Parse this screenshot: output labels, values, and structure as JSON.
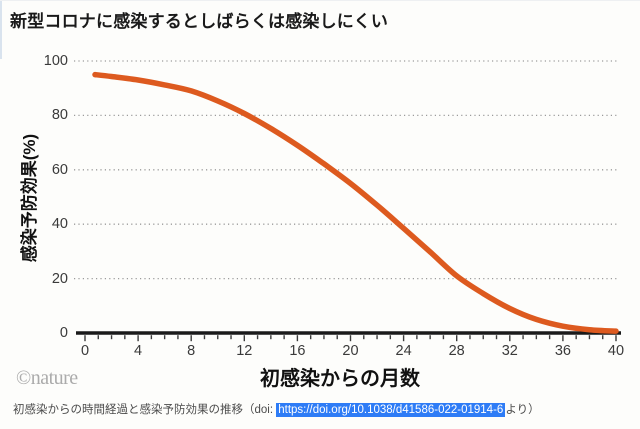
{
  "title": "新型コロナに感染するとしばらくは感染しにくい",
  "chart_data": {
    "type": "line",
    "title": "新型コロナに感染するとしばらくは感染しにくい",
    "xlabel": "初感染からの月数",
    "ylabel": "感染予防効果(%)",
    "xlim": [
      0,
      40
    ],
    "ylim": [
      0,
      100
    ],
    "x_ticks": [
      0,
      4,
      8,
      12,
      16,
      20,
      24,
      28,
      32,
      36,
      40
    ],
    "y_ticks": [
      0,
      20,
      40,
      60,
      80,
      100
    ],
    "minor_x_tick_every": 1,
    "grid": "horizontal-dotted",
    "legend": "none",
    "series": [
      {
        "name": "感染予防効果",
        "color": "#dd5a1f",
        "x": [
          0.75,
          2,
          4,
          6,
          8,
          10,
          12,
          14,
          16,
          18,
          20,
          22,
          24,
          26,
          28,
          30,
          32,
          34,
          36,
          38,
          40
        ],
        "y": [
          95,
          94.3,
          93,
          91.2,
          89,
          85.3,
          80.7,
          75.2,
          69,
          62.2,
          55,
          47,
          38.5,
          29.8,
          21,
          14.5,
          9,
          5,
          2.5,
          1.2,
          0.7
        ]
      }
    ]
  },
  "footer": {
    "credit": "©nature",
    "caption_prefix": "初感染からの時間経過と感染予防効果の推移（doi: ",
    "caption_link": "https://doi.org/10.1038/d41586-022-01914-6",
    "caption_suffix": "より）"
  },
  "colors": {
    "curve": "#dd5a1f",
    "axis": "#1a1a1a",
    "grid_dots": "#9b9b9b",
    "tick_text": "#3a3a3a",
    "link_highlight_bg": "#2e7cf6",
    "link_highlight_text": "#ffffff",
    "credit_gray": "#ababab"
  }
}
